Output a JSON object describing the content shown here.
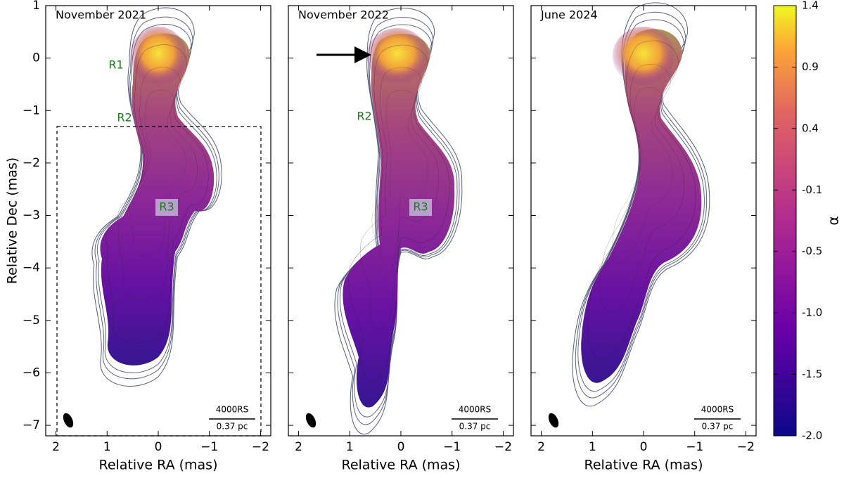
{
  "chart_data": [
    {
      "type": "image",
      "title": "November 2021",
      "xlabel": "Relative RA (mas)",
      "ylabel": "Relative Dec (mas)",
      "xlim": [
        2.2,
        -2.2
      ],
      "ylim": [
        -7.2,
        1
      ],
      "xticks": [
        2,
        1,
        0,
        {
          "value": -1,
          "label": "−1"
        },
        {
          "value": -2,
          "label": "−2"
        }
      ],
      "yticks": [
        1,
        0,
        {
          "value": -1,
          "label": "−1"
        },
        {
          "value": -2,
          "label": "−2"
        },
        {
          "value": -3,
          "label": "−3"
        },
        {
          "value": -4,
          "label": "−4"
        },
        {
          "value": -5,
          "label": "−5"
        },
        {
          "value": -6,
          "label": "−6"
        },
        {
          "value": -7,
          "label": "−7"
        }
      ],
      "annotations": [
        "R1",
        "R2",
        "R3"
      ],
      "scalebar": [
        "4000RS",
        "0.37 pc"
      ]
    },
    {
      "type": "image",
      "title": "November 2022",
      "xlabel": "Relative RA (mas)",
      "xlim": [
        2.2,
        -2.2
      ],
      "ylim": [
        -7.2,
        1
      ],
      "xticks": [
        2,
        1,
        0,
        {
          "value": -1,
          "label": "−1"
        },
        {
          "value": -2,
          "label": "−2"
        }
      ],
      "yticks": [
        1,
        0,
        {
          "value": -1,
          "label": "−1"
        },
        {
          "value": -2,
          "label": "−2"
        },
        {
          "value": -3,
          "label": "−3"
        },
        {
          "value": -4,
          "label": "−4"
        },
        {
          "value": -5,
          "label": "−5"
        },
        {
          "value": -6,
          "label": "−6"
        },
        {
          "value": -7,
          "label": "−7"
        }
      ],
      "annotations": [
        "R2",
        "R3"
      ],
      "scalebar": [
        "4000RS",
        "0.37 pc"
      ]
    },
    {
      "type": "image",
      "title": "June 2024",
      "xlabel": "Relative RA (mas)",
      "xlim": [
        2.2,
        -2.2
      ],
      "ylim": [
        -7.2,
        1
      ],
      "xticks": [
        2,
        1,
        0,
        {
          "value": -1,
          "label": "−1"
        },
        {
          "value": -2,
          "label": "−2"
        }
      ],
      "yticks": [
        1,
        0,
        {
          "value": -1,
          "label": "−1"
        },
        {
          "value": -2,
          "label": "−2"
        },
        {
          "value": -3,
          "label": "−3"
        },
        {
          "value": -4,
          "label": "−4"
        },
        {
          "value": -5,
          "label": "−5"
        },
        {
          "value": -6,
          "label": "−6"
        },
        {
          "value": -7,
          "label": "−7"
        }
      ],
      "annotations": [],
      "scalebar": [
        "4000RS",
        "0.37 pc"
      ]
    }
  ],
  "colorbar": {
    "label": "α",
    "lim": [
      -2.0,
      1.4
    ],
    "ticks": [
      {
        "value": 1.4,
        "label": "1.4"
      },
      {
        "value": 0.914,
        "label": "0.9"
      },
      {
        "value": 0.429,
        "label": "0.4"
      },
      {
        "value": -0.057,
        "label": "-0.1"
      },
      {
        "value": -0.543,
        "label": "-0.5"
      },
      {
        "value": -1.029,
        "label": "-1.0"
      },
      {
        "value": -1.514,
        "label": "-1.5"
      },
      {
        "value": -2.0,
        "label": "-2.0"
      }
    ]
  }
}
